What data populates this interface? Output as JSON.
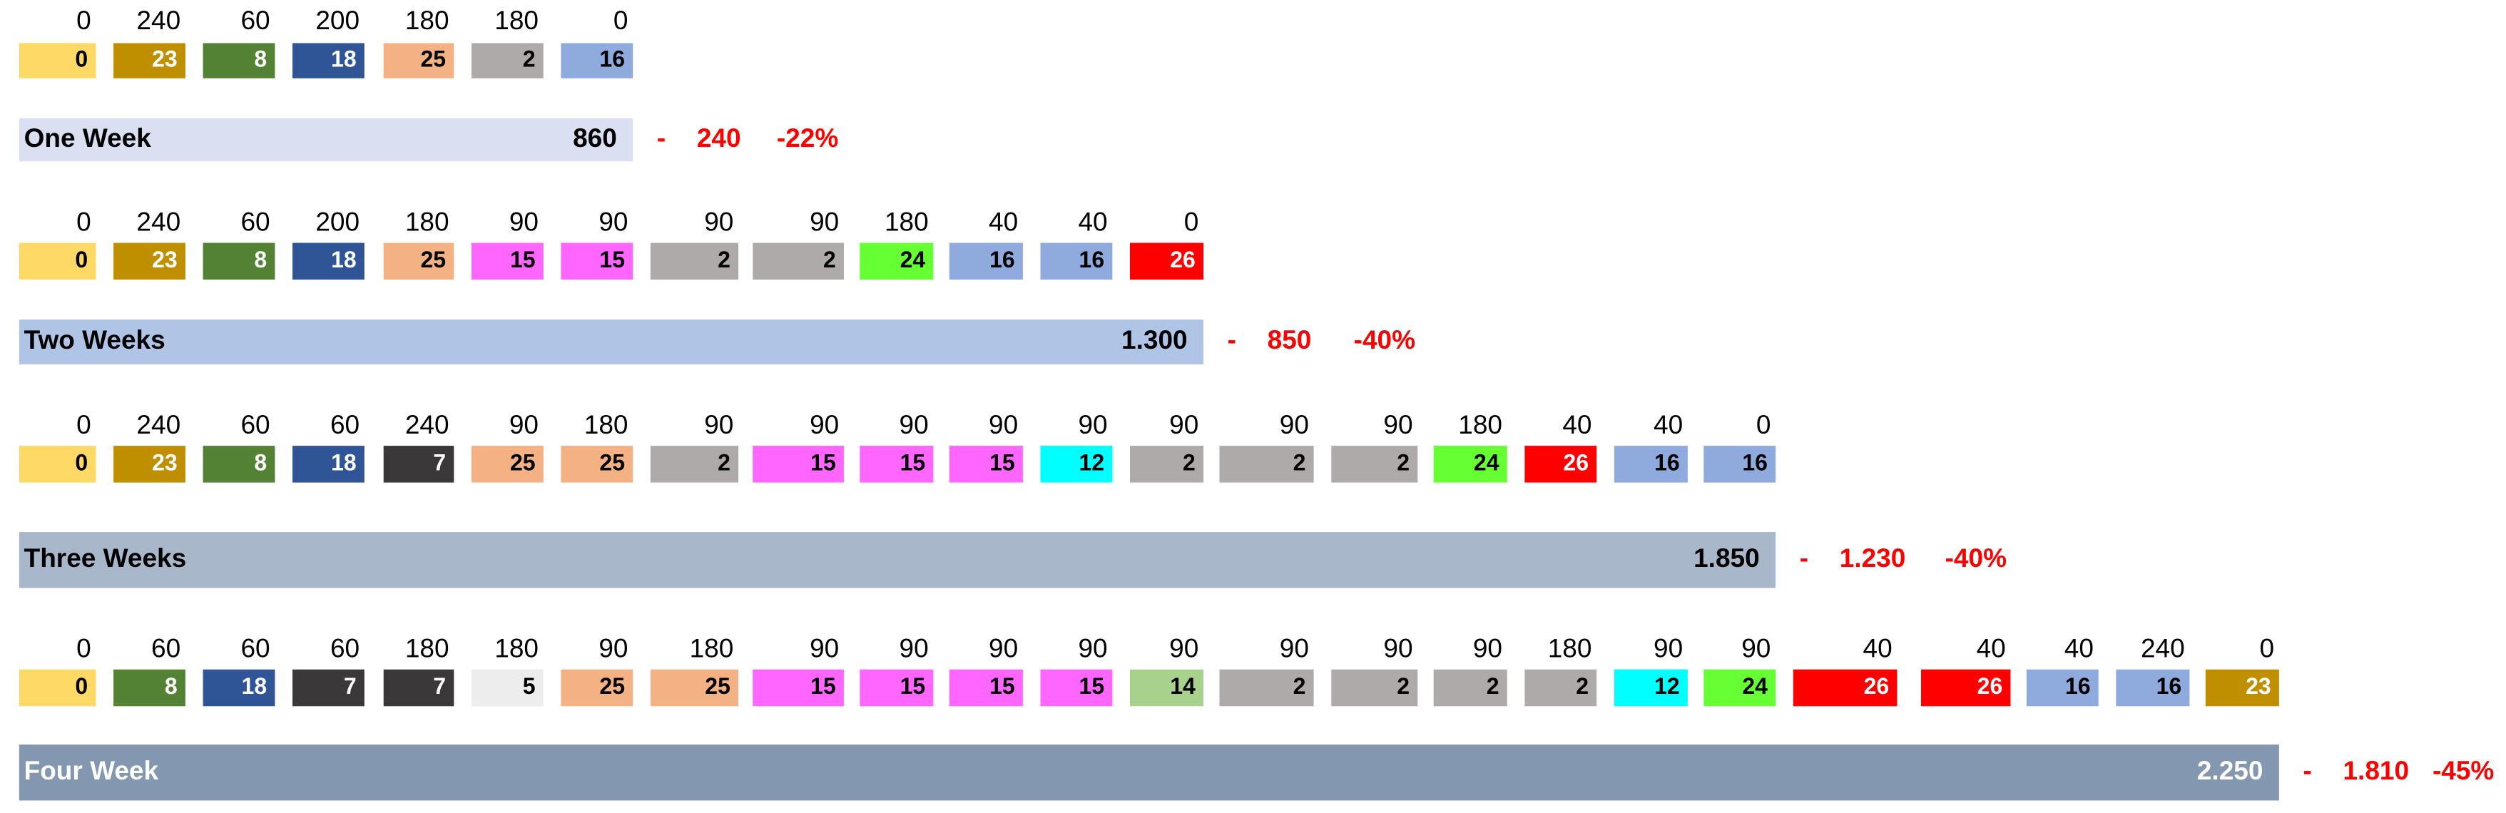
{
  "rows": [
    {
      "numbers": [
        "0",
        "240",
        "60",
        "200",
        "180",
        "180",
        "0"
      ],
      "cells": [
        {
          "value": "0",
          "color": "#ffd966"
        },
        {
          "value": "23",
          "color": "#bf8f00"
        },
        {
          "value": "8",
          "color": "#548235"
        },
        {
          "value": "18",
          "color": "#2f5597"
        },
        {
          "value": "25",
          "color": "#f4b183"
        },
        {
          "value": "2",
          "color": "#aeaaaa"
        },
        {
          "value": "16",
          "color": "#8faadc"
        }
      ],
      "summary": {
        "label": "One Week",
        "total": "860",
        "sign": "-",
        "diff": "240",
        "pct": "-22%",
        "color": "#dae0f2",
        "label_color": "#000000"
      }
    },
    {
      "numbers": [
        "0",
        "240",
        "60",
        "200",
        "180",
        "90",
        "90",
        "90",
        "90",
        "180",
        "40",
        "40",
        "0"
      ],
      "cells": [
        {
          "value": "0",
          "color": "#ffd966"
        },
        {
          "value": "23",
          "color": "#bf8f00"
        },
        {
          "value": "8",
          "color": "#548235"
        },
        {
          "value": "18",
          "color": "#2f5597"
        },
        {
          "value": "25",
          "color": "#f4b183"
        },
        {
          "value": "15",
          "color": "#ff66ff"
        },
        {
          "value": "15",
          "color": "#ff66ff"
        },
        {
          "value": "2",
          "color": "#aeaaaa"
        },
        {
          "value": "2",
          "color": "#aeaaaa"
        },
        {
          "value": "24",
          "color": "#66ff33"
        },
        {
          "value": "16",
          "color": "#8faadc"
        },
        {
          "value": "16",
          "color": "#8faadc"
        },
        {
          "value": "26",
          "color": "#ff0000"
        }
      ],
      "summary": {
        "label": "Two Weeks",
        "total": "1.300",
        "sign": "-",
        "diff": "850",
        "pct": "-40%",
        "color": "#b0c4e6",
        "label_color": "#000000"
      }
    },
    {
      "numbers": [
        "0",
        "240",
        "60",
        "60",
        "240",
        "90",
        "180",
        "90",
        "90",
        "90",
        "90",
        "90",
        "90",
        "90",
        "90",
        "180",
        "40",
        "40",
        "0"
      ],
      "cells": [
        {
          "value": "0",
          "color": "#ffd966"
        },
        {
          "value": "23",
          "color": "#bf8f00"
        },
        {
          "value": "8",
          "color": "#548235"
        },
        {
          "value": "18",
          "color": "#2f5597"
        },
        {
          "value": "7",
          "color": "#3a3838"
        },
        {
          "value": "25",
          "color": "#f4b183"
        },
        {
          "value": "25",
          "color": "#f4b183"
        },
        {
          "value": "2",
          "color": "#aeaaaa"
        },
        {
          "value": "15",
          "color": "#ff66ff"
        },
        {
          "value": "15",
          "color": "#ff66ff"
        },
        {
          "value": "15",
          "color": "#ff66ff"
        },
        {
          "value": "12",
          "color": "#00ffff"
        },
        {
          "value": "2",
          "color": "#aeaaaa"
        },
        {
          "value": "2",
          "color": "#aeaaaa"
        },
        {
          "value": "2",
          "color": "#aeaaaa"
        },
        {
          "value": "24",
          "color": "#66ff33"
        },
        {
          "value": "26",
          "color": "#ff0000"
        },
        {
          "value": "16",
          "color": "#8faadc"
        },
        {
          "value": "16",
          "color": "#8faadc"
        }
      ],
      "summary": {
        "label": "Three Weeks",
        "total": "1.850",
        "sign": "-",
        "diff": "1.230",
        "pct": "-40%",
        "color": "#a9b7ca",
        "label_color": "#000000"
      }
    },
    {
      "numbers": [
        "0",
        "60",
        "60",
        "60",
        "180",
        "180",
        "90",
        "180",
        "90",
        "90",
        "90",
        "90",
        "90",
        "90",
        "90",
        "90",
        "180",
        "90",
        "90",
        "40",
        "40",
        "40",
        "240",
        "0"
      ],
      "cells": [
        {
          "value": "0",
          "color": "#ffd966"
        },
        {
          "value": "8",
          "color": "#548235"
        },
        {
          "value": "18",
          "color": "#2f5597"
        },
        {
          "value": "7",
          "color": "#3a3838"
        },
        {
          "value": "7",
          "color": "#3a3838"
        },
        {
          "value": "5",
          "color": "#ededed"
        },
        {
          "value": "25",
          "color": "#f4b183"
        },
        {
          "value": "25",
          "color": "#f4b183"
        },
        {
          "value": "15",
          "color": "#ff66ff"
        },
        {
          "value": "15",
          "color": "#ff66ff"
        },
        {
          "value": "15",
          "color": "#ff66ff"
        },
        {
          "value": "15",
          "color": "#ff66ff"
        },
        {
          "value": "14",
          "color": "#a9d18e"
        },
        {
          "value": "2",
          "color": "#aeaaaa"
        },
        {
          "value": "2",
          "color": "#aeaaaa"
        },
        {
          "value": "2",
          "color": "#aeaaaa"
        },
        {
          "value": "2",
          "color": "#aeaaaa"
        },
        {
          "value": "12",
          "color": "#00ffff"
        },
        {
          "value": "24",
          "color": "#66ff33"
        },
        {
          "value": "26",
          "color": "#ff0000"
        },
        {
          "value": "26",
          "color": "#ff0000"
        },
        {
          "value": "16",
          "color": "#8faadc"
        },
        {
          "value": "16",
          "color": "#8faadc"
        },
        {
          "value": "23",
          "color": "#bf8f00"
        }
      ],
      "summary": {
        "label": "Four Week",
        "total": "2.250",
        "sign": "-",
        "diff": "1.810",
        "pct": "-45%",
        "color": "#8497b0",
        "label_color": "#ffffff"
      }
    }
  ]
}
